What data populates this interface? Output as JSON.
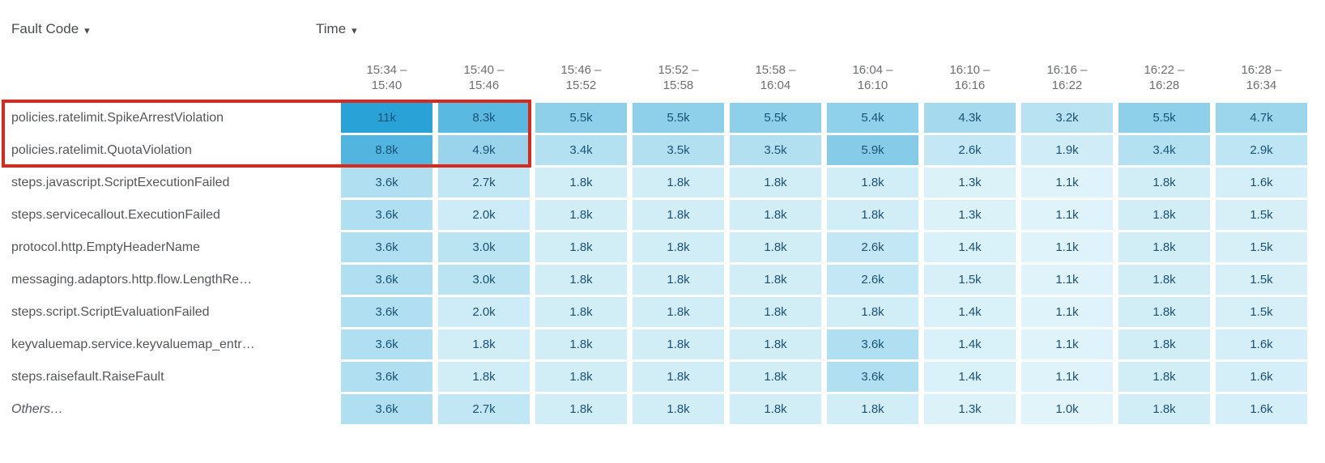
{
  "header": {
    "row_dimension_label": "Fault Code",
    "column_dimension_label": "Time"
  },
  "icons": {
    "caret_down": "▾"
  },
  "chart_data": {
    "type": "heatmap",
    "x_dimension": "Time",
    "y_dimension": "Fault Code",
    "columns": [
      "15:34 – 15:40",
      "15:40 – 15:46",
      "15:46 – 15:52",
      "15:52 – 15:58",
      "15:58 – 16:04",
      "16:04 – 16:10",
      "16:10 – 16:16",
      "16:16 – 16:22",
      "16:22 – 16:28",
      "16:28 – 16:34"
    ],
    "rows": [
      {
        "label": "policies.ratelimit.SpikeArrestViolation",
        "italic": false,
        "values": [
          "11k",
          "8.3k",
          "5.5k",
          "5.5k",
          "5.5k",
          "5.4k",
          "4.3k",
          "3.2k",
          "5.5k",
          "4.7k"
        ]
      },
      {
        "label": "policies.ratelimit.QuotaViolation",
        "italic": false,
        "values": [
          "8.8k",
          "4.9k",
          "3.4k",
          "3.5k",
          "3.5k",
          "5.9k",
          "2.6k",
          "1.9k",
          "3.4k",
          "2.9k"
        ]
      },
      {
        "label": "steps.javascript.ScriptExecutionFailed",
        "italic": false,
        "values": [
          "3.6k",
          "2.7k",
          "1.8k",
          "1.8k",
          "1.8k",
          "1.8k",
          "1.3k",
          "1.1k",
          "1.8k",
          "1.6k"
        ]
      },
      {
        "label": "steps.servicecallout.ExecutionFailed",
        "italic": false,
        "values": [
          "3.6k",
          "2.0k",
          "1.8k",
          "1.8k",
          "1.8k",
          "1.8k",
          "1.3k",
          "1.1k",
          "1.8k",
          "1.5k"
        ]
      },
      {
        "label": "protocol.http.EmptyHeaderName",
        "italic": false,
        "values": [
          "3.6k",
          "3.0k",
          "1.8k",
          "1.8k",
          "1.8k",
          "2.6k",
          "1.4k",
          "1.1k",
          "1.8k",
          "1.5k"
        ]
      },
      {
        "label": "messaging.adaptors.http.flow.LengthRe…",
        "italic": false,
        "values": [
          "3.6k",
          "3.0k",
          "1.8k",
          "1.8k",
          "1.8k",
          "2.6k",
          "1.5k",
          "1.1k",
          "1.8k",
          "1.5k"
        ]
      },
      {
        "label": "steps.script.ScriptEvaluationFailed",
        "italic": false,
        "values": [
          "3.6k",
          "2.0k",
          "1.8k",
          "1.8k",
          "1.8k",
          "1.8k",
          "1.4k",
          "1.1k",
          "1.8k",
          "1.5k"
        ]
      },
      {
        "label": "keyvaluemap.service.keyvaluemap_entr…",
        "italic": false,
        "values": [
          "3.6k",
          "1.8k",
          "1.8k",
          "1.8k",
          "1.8k",
          "3.6k",
          "1.4k",
          "1.1k",
          "1.8k",
          "1.6k"
        ]
      },
      {
        "label": "steps.raisefault.RaiseFault",
        "italic": false,
        "values": [
          "3.6k",
          "1.8k",
          "1.8k",
          "1.8k",
          "1.8k",
          "3.6k",
          "1.4k",
          "1.1k",
          "1.8k",
          "1.6k"
        ]
      },
      {
        "label": "Others…",
        "italic": true,
        "values": [
          "3.6k",
          "2.7k",
          "1.8k",
          "1.8k",
          "1.8k",
          "1.8k",
          "1.3k",
          "1.0k",
          "1.8k",
          "1.6k"
        ]
      }
    ],
    "value_unit": "k",
    "value_range": [
      1.0,
      11.0
    ],
    "color_scale": {
      "min_color": "#e0f4fa",
      "max_color": "#29a3d7"
    },
    "cell_text_color": "#1a5276",
    "legend_position": "none",
    "grid": false
  },
  "highlight_box": {
    "first_row_index": 0,
    "last_row_index": 1,
    "first_col_index": 0,
    "last_col_index": 1,
    "includes_row_labels": true,
    "color": "#da291c"
  }
}
